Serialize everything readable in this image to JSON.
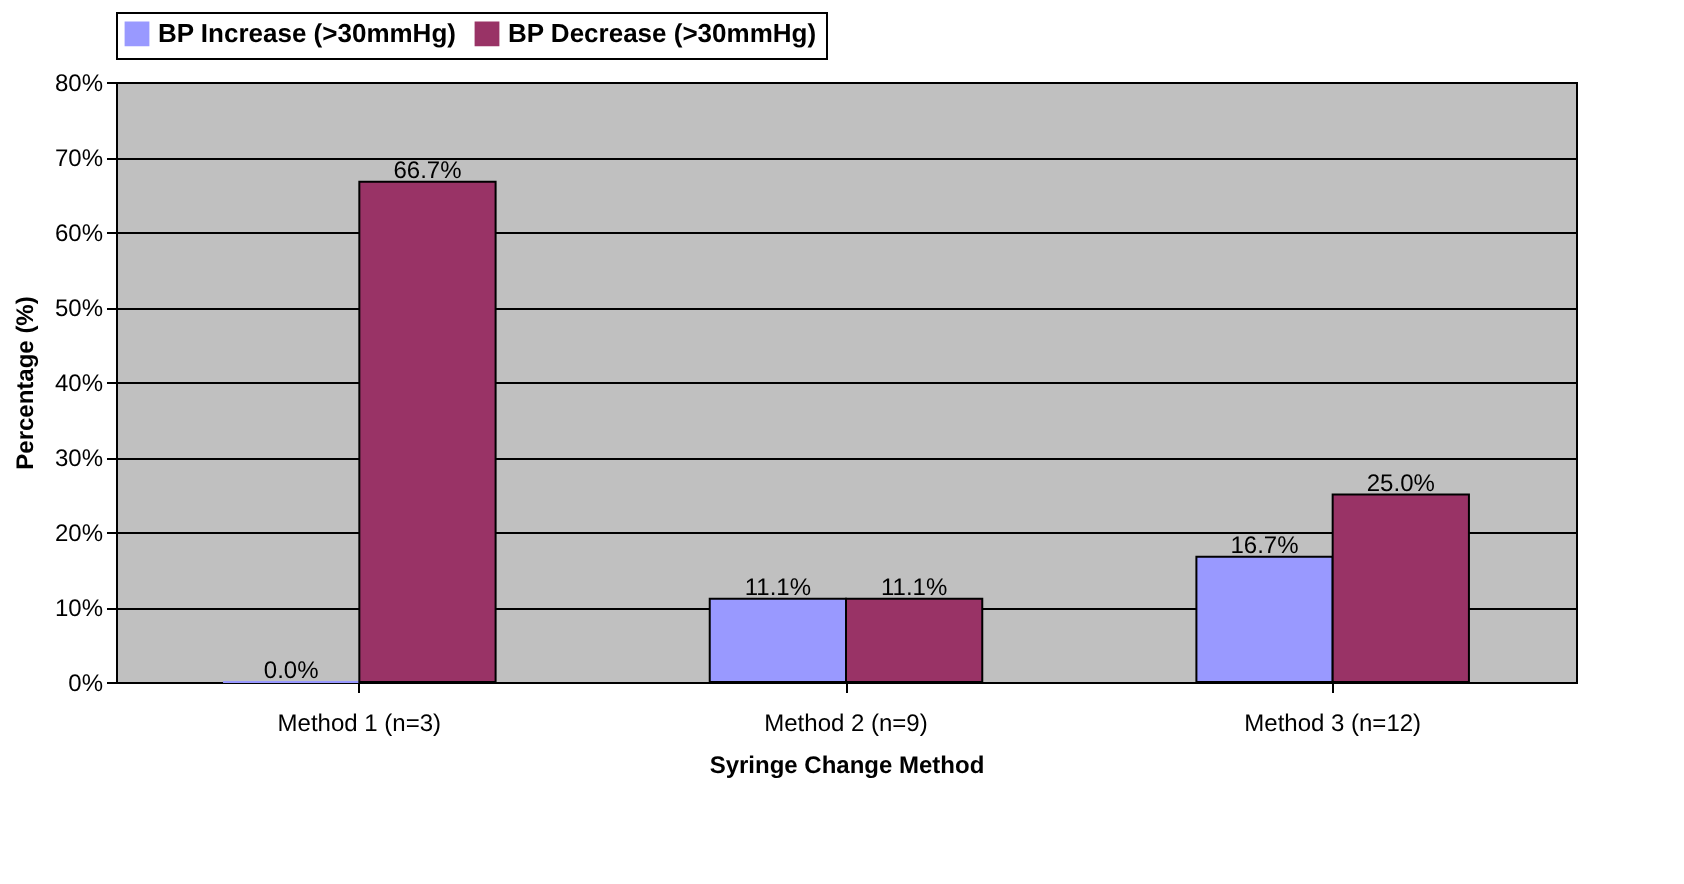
{
  "chart_data": {
    "type": "bar",
    "xlabel": "Syringe Change Method",
    "ylabel": "Percentage (%)",
    "categories": [
      "Method 1 (n=3)",
      "Method 2 (n=9)",
      "Method 3 (n=12)"
    ],
    "series": [
      {
        "name": "BP Increase (>30mmHg)",
        "color": "#9999ff",
        "values": [
          0.0,
          11.1,
          16.7
        ],
        "value_labels": [
          "0.0%",
          "11.1%",
          "16.7%"
        ]
      },
      {
        "name": "BP Decrease (>30mmHg)",
        "color": "#993366",
        "values": [
          66.7,
          11.1,
          25.0
        ],
        "value_labels": [
          "66.7%",
          "11.1%",
          "25.0%"
        ]
      }
    ],
    "ylim": [
      0,
      80
    ],
    "yticks": [
      {
        "value": 0,
        "label": "0%"
      },
      {
        "value": 10,
        "label": "10%"
      },
      {
        "value": 20,
        "label": "20%"
      },
      {
        "value": 30,
        "label": "30%"
      },
      {
        "value": 40,
        "label": "40%"
      },
      {
        "value": 50,
        "label": "50%"
      },
      {
        "value": 60,
        "label": "60%"
      },
      {
        "value": 70,
        "label": "70%"
      },
      {
        "value": 80,
        "label": "80%"
      }
    ],
    "grid": "y",
    "legend": "top"
  }
}
